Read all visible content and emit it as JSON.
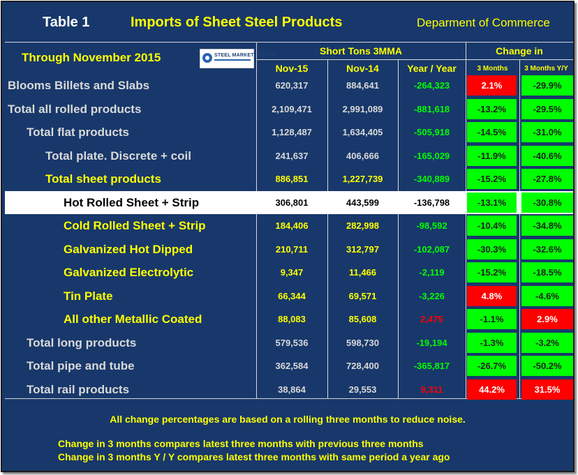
{
  "header": {
    "table_label": "Table 1",
    "title": "Imports of Sheet Steel Products",
    "source": "Deparment of Commerce",
    "through": "Through November 2015",
    "logo_text": "STEEL MARKET UPDATE"
  },
  "columns": {
    "group_tons": "Short Tons 3MMA",
    "group_change": "Change in",
    "nov15": "Nov-15",
    "nov14": "Nov-14",
    "yoy": "Year / Year",
    "m3": "3 Months",
    "m3yy": "3 Months Y/Y"
  },
  "colors": {
    "background": "#18386b",
    "text_yellow": "#ffff00",
    "text_light": "#d9d9d9",
    "positive_green": "#00ff00",
    "negative_red": "#ff0000"
  },
  "rows": [
    {
      "label": "Blooms Billets and Slabs",
      "nov15": "620,317",
      "nov14": "884,641",
      "yoy": "-264,323",
      "m3": "2.1%",
      "m3yy": "-29.9%"
    },
    {
      "label": "Total all rolled products",
      "nov15": "2,109,471",
      "nov14": "2,991,089",
      "yoy": "-881,618",
      "m3": "-13.2%",
      "m3yy": "-29.5%"
    },
    {
      "label": "Total flat products",
      "nov15": "1,128,487",
      "nov14": "1,634,405",
      "yoy": "-505,918",
      "m3": "-14.5%",
      "m3yy": "-31.0%"
    },
    {
      "label": "Total plate. Discrete + coil",
      "nov15": "241,637",
      "nov14": "406,666",
      "yoy": "-165,029",
      "m3": "-11.9%",
      "m3yy": "-40.6%"
    },
    {
      "label": "Total sheet products",
      "nov15": "886,851",
      "nov14": "1,227,739",
      "yoy": "-340,889",
      "m3": "-15.2%",
      "m3yy": "-27.8%"
    },
    {
      "label": "Hot Rolled Sheet + Strip",
      "nov15": "306,801",
      "nov14": "443,599",
      "yoy": "-136,798",
      "m3": "-13.1%",
      "m3yy": "-30.8%"
    },
    {
      "label": "Cold Rolled Sheet + Strip",
      "nov15": "184,406",
      "nov14": "282,998",
      "yoy": "-98,592",
      "m3": "-10.4%",
      "m3yy": "-34.8%"
    },
    {
      "label": "Galvanized Hot Dipped",
      "nov15": "210,711",
      "nov14": "312,797",
      "yoy": "-102,087",
      "m3": "-30.3%",
      "m3yy": "-32.6%"
    },
    {
      "label": "Galvanized Electrolytic",
      "nov15": "9,347",
      "nov14": "11,466",
      "yoy": "-2,119",
      "m3": "-15.2%",
      "m3yy": "-18.5%"
    },
    {
      "label": "Tin Plate",
      "nov15": "66,344",
      "nov14": "69,571",
      "yoy": "-3,226",
      "m3": "4.8%",
      "m3yy": "-4.6%"
    },
    {
      "label": "All other Metallic Coated",
      "nov15": "88,083",
      "nov14": "85,608",
      "yoy": "2,475",
      "m3": "-1.1%",
      "m3yy": "2.9%"
    },
    {
      "label": "Total long products",
      "nov15": "579,536",
      "nov14": "598,730",
      "yoy": "-19,194",
      "m3": "-1.3%",
      "m3yy": "-3.2%"
    },
    {
      "label": "Total pipe and tube",
      "nov15": "362,584",
      "nov14": "728,400",
      "yoy": "-365,817",
      "m3": "-26.7%",
      "m3yy": "-50.2%"
    },
    {
      "label": "Total rail products",
      "nov15": "38,864",
      "nov14": "29,553",
      "yoy": "9,311",
      "m3": "44.2%",
      "m3yy": "31.5%"
    }
  ],
  "footer": {
    "note1": "All change percentages are based on a rolling three months to reduce noise.",
    "note2": "Change in 3 months compares latest three months with previous three months",
    "note3": "Change in 3 months  Y / Y compares latest three months with same period a year ago"
  }
}
